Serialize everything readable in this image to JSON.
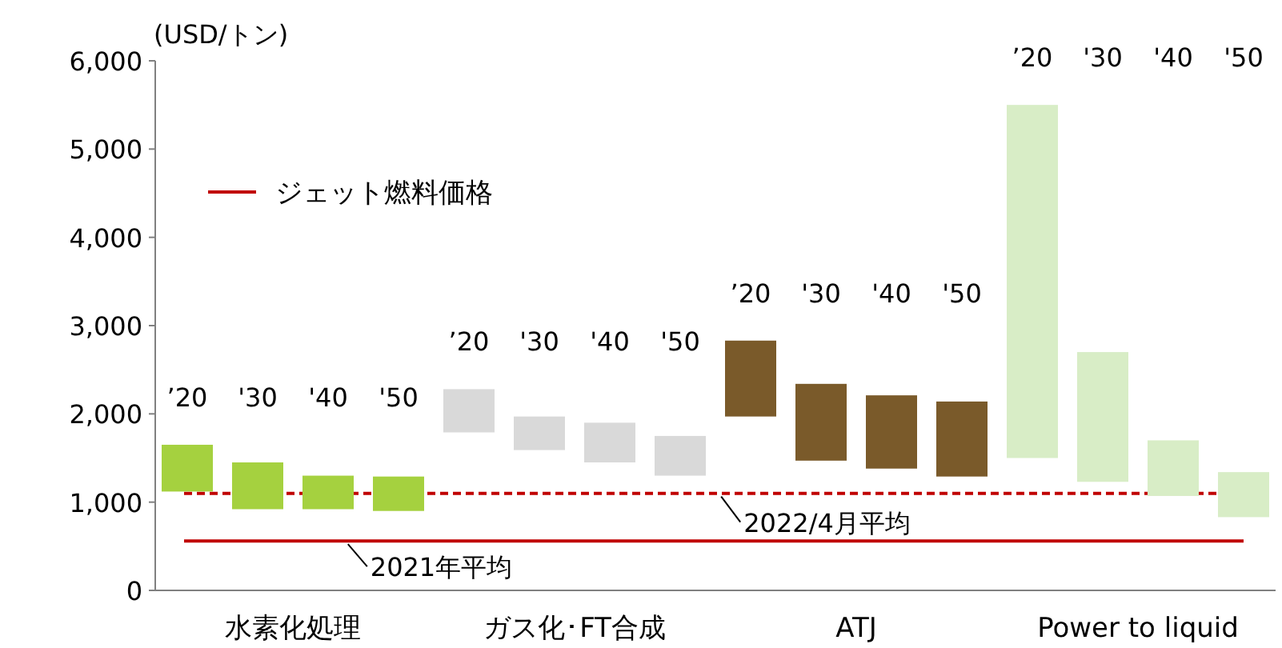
{
  "chart_data": {
    "type": "bar",
    "ylabel": "(USD/トン)",
    "categories": [
      "’20",
      "'30",
      "'40",
      "'50",
      "’20",
      "'30",
      "'40",
      "'50",
      "’20",
      "'30",
      "'40",
      "'50",
      "’20",
      "'30",
      "'40",
      "'50"
    ],
    "base": [
      1120,
      920,
      920,
      900,
      1790,
      1590,
      1450,
      1300,
      1970,
      1470,
      1380,
      1290,
      1500,
      1230,
      1070,
      830
    ],
    "values": [
      530,
      530,
      380,
      390,
      490,
      380,
      450,
      450,
      860,
      870,
      830,
      850,
      4000,
      1470,
      630,
      510
    ],
    "colors": [
      "#a5d13f",
      "#a5d13f",
      "#a5d13f",
      "#a5d13f",
      "#d9d9d9",
      "#d9d9d9",
      "#d9d9d9",
      "#d9d9d9",
      "#7a5a2a",
      "#7a5a2a",
      "#7a5a2a",
      "#7a5a2a",
      "#d8edc6",
      "#d8edc6",
      "#d8edc6",
      "#d8edc6"
    ],
    "ylim": [
      0,
      6000
    ],
    "yticks": [
      0,
      {
        "value": 1000,
        "label": "1,000"
      },
      {
        "value": 2000,
        "label": "2,000"
      },
      {
        "value": 3000,
        "label": "3,000"
      },
      {
        "value": 4000,
        "label": "4,000"
      },
      {
        "value": 5000,
        "label": "5,000"
      },
      {
        "value": 6000,
        "label": "6,000"
      }
    ],
    "ref_lines": [
      {
        "axis": "y",
        "value": 560,
        "label": "2021年平均",
        "color": "#c00000",
        "line_style": "solid"
      },
      {
        "axis": "y",
        "value": 1100,
        "label": "2022/4月平均",
        "color": "#c00000",
        "line_style": "dashed"
      }
    ],
    "legend_title": "ジェット燃料価格",
    "annotations": [
      "水素化処理",
      "ガス化･FT合成",
      "ATJ",
      "Power to liquid"
    ],
    "grid": false
  }
}
